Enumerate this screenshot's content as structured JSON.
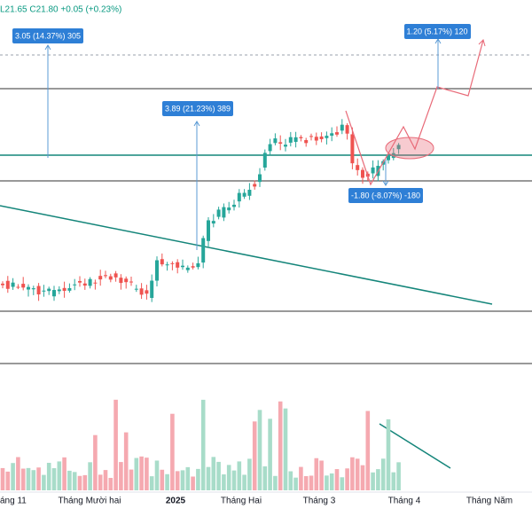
{
  "header": {
    "legend": "L21.65  C21.80  +0.05 (+0.23%)"
  },
  "annotations": [
    "3.05 (14.37%) 305",
    "3.89 (21.23%) 389",
    "1.20 (5.17%) 120",
    "-1.80 (-8.07%) -180"
  ],
  "time_axis": [
    "áng 11",
    "Tháng Mười hai",
    "2025",
    "Tháng Hai",
    "Tháng 3",
    "Tháng 4",
    "Tháng Năm"
  ]
}
